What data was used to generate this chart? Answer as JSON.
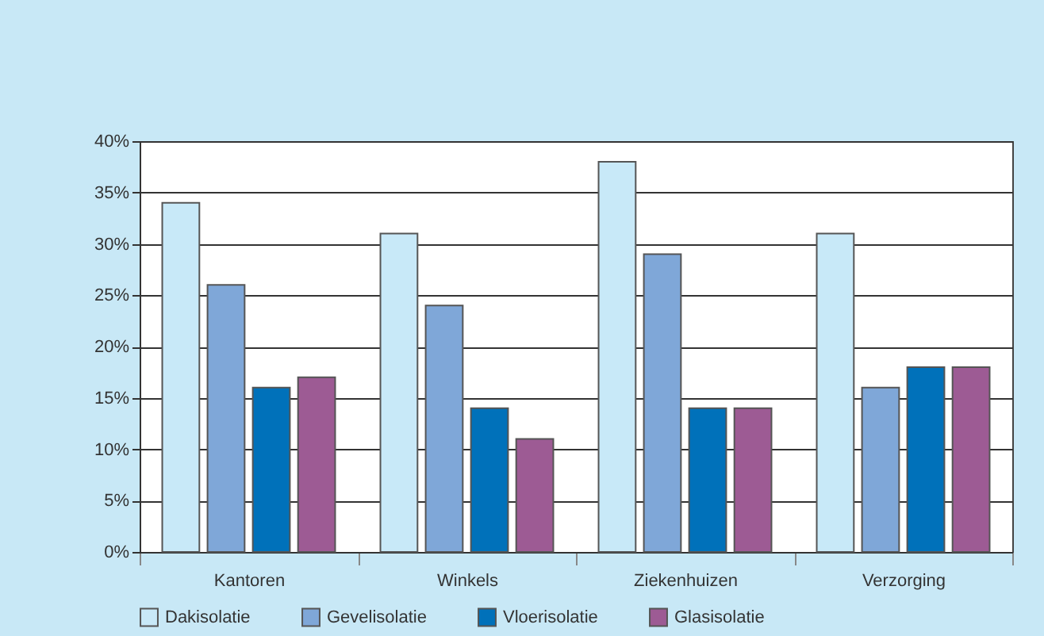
{
  "chart_data": {
    "type": "bar",
    "categories": [
      "Kantoren",
      "Winkels",
      "Ziekenhuizen",
      "Verzorging"
    ],
    "series": [
      {
        "name": "Dakisolatie",
        "color": "#c8e9f8",
        "values": [
          34,
          31,
          38,
          31
        ]
      },
      {
        "name": "Gevelisolatie",
        "color": "#7fa7d8",
        "values": [
          26,
          24,
          29,
          16
        ]
      },
      {
        "name": "Vloerisolatie",
        "color": "#0071ba",
        "values": [
          16,
          14,
          14,
          18
        ]
      },
      {
        "name": "Glasisolatie",
        "color": "#9d5b94",
        "values": [
          17,
          11,
          14,
          18
        ]
      }
    ],
    "ylim": [
      0,
      40
    ],
    "yticks": [
      {
        "value": 0,
        "label": "0%"
      },
      {
        "value": 5,
        "label": "5%"
      },
      {
        "value": 10,
        "label": "10%"
      },
      {
        "value": 15,
        "label": "15%"
      },
      {
        "value": 20,
        "label": "20%"
      },
      {
        "value": 25,
        "label": "25%"
      },
      {
        "value": 30,
        "label": "30%"
      },
      {
        "value": 35,
        "label": "35%"
      },
      {
        "value": 40,
        "label": "40%"
      }
    ],
    "grid": "y",
    "legend": "bottom"
  }
}
